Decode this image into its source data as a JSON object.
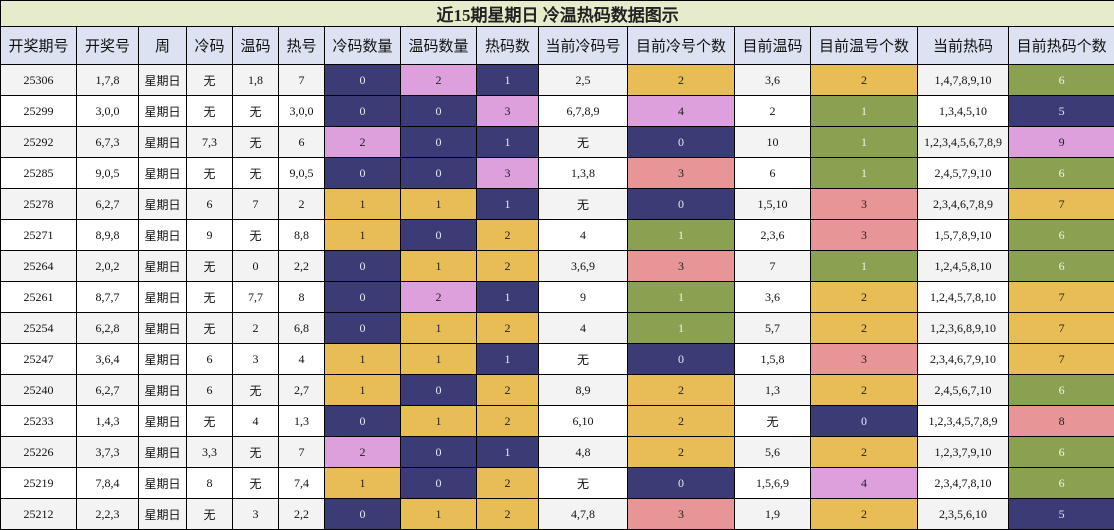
{
  "title": "近15期星期日 冷温热码数据图示",
  "headers": [
    "开奖期号",
    "开奖号",
    "周",
    "冷码",
    "温码",
    "热号",
    "冷码数量",
    "温码数量",
    "热码数",
    "当前冷码号",
    "目前冷号个数",
    "目前温码",
    "目前温号个数",
    "当前热码",
    "目前热码个数"
  ],
  "colors": {
    "navy": "#3b3b75",
    "pink": "#dda0dd",
    "gold": "#e8bd55",
    "green": "#8aa152",
    "rose": "#e89597"
  },
  "rows": [
    {
      "cells": [
        "25306",
        "1,7,8",
        "星期日",
        "无",
        "1,8",
        "7",
        "0",
        "2",
        "1",
        "2,5",
        "2",
        "3,6",
        "2",
        "1,4,7,8,9,10",
        "6"
      ],
      "colors": [
        "",
        "",
        "",
        "",
        "",
        "",
        "navy",
        "pink",
        "navy",
        "",
        "gold",
        "",
        "gold",
        "",
        "green"
      ]
    },
    {
      "cells": [
        "25299",
        "3,0,0",
        "星期日",
        "无",
        "无",
        "3,0,0",
        "0",
        "0",
        "3",
        "6,7,8,9",
        "4",
        "2",
        "1",
        "1,3,4,5,10",
        "5"
      ],
      "colors": [
        "",
        "",
        "",
        "",
        "",
        "",
        "navy",
        "navy",
        "pink",
        "",
        "pink",
        "",
        "green",
        "",
        "navy"
      ]
    },
    {
      "cells": [
        "25292",
        "6,7,3",
        "星期日",
        "7,3",
        "无",
        "6",
        "2",
        "0",
        "1",
        "无",
        "0",
        "10",
        "1",
        "1,2,3,4,5,6,7,8,9",
        "9"
      ],
      "colors": [
        "",
        "",
        "",
        "",
        "",
        "",
        "pink",
        "navy",
        "navy",
        "",
        "navy",
        "",
        "green",
        "",
        "pink"
      ]
    },
    {
      "cells": [
        "25285",
        "9,0,5",
        "星期日",
        "无",
        "无",
        "9,0,5",
        "0",
        "0",
        "3",
        "1,3,8",
        "3",
        "6",
        "1",
        "2,4,5,7,9,10",
        "6"
      ],
      "colors": [
        "",
        "",
        "",
        "",
        "",
        "",
        "navy",
        "navy",
        "pink",
        "",
        "rose",
        "",
        "green",
        "",
        "green"
      ]
    },
    {
      "cells": [
        "25278",
        "6,2,7",
        "星期日",
        "6",
        "7",
        "2",
        "1",
        "1",
        "1",
        "无",
        "0",
        "1,5,10",
        "3",
        "2,3,4,6,7,8,9",
        "7"
      ],
      "colors": [
        "",
        "",
        "",
        "",
        "",
        "",
        "gold",
        "gold",
        "navy",
        "",
        "navy",
        "",
        "rose",
        "",
        "gold"
      ]
    },
    {
      "cells": [
        "25271",
        "8,9,8",
        "星期日",
        "9",
        "无",
        "8,8",
        "1",
        "0",
        "2",
        "4",
        "1",
        "2,3,6",
        "3",
        "1,5,7,8,9,10",
        "6"
      ],
      "colors": [
        "",
        "",
        "",
        "",
        "",
        "",
        "gold",
        "navy",
        "gold",
        "",
        "green",
        "",
        "rose",
        "",
        "green"
      ]
    },
    {
      "cells": [
        "25264",
        "2,0,2",
        "星期日",
        "无",
        "0",
        "2,2",
        "0",
        "1",
        "2",
        "3,6,9",
        "3",
        "7",
        "1",
        "1,2,4,5,8,10",
        "6"
      ],
      "colors": [
        "",
        "",
        "",
        "",
        "",
        "",
        "navy",
        "gold",
        "gold",
        "",
        "rose",
        "",
        "green",
        "",
        "green"
      ]
    },
    {
      "cells": [
        "25261",
        "8,7,7",
        "星期日",
        "无",
        "7,7",
        "8",
        "0",
        "2",
        "1",
        "9",
        "1",
        "3,6",
        "2",
        "1,2,4,5,7,8,10",
        "7"
      ],
      "colors": [
        "",
        "",
        "",
        "",
        "",
        "",
        "navy",
        "pink",
        "navy",
        "",
        "green",
        "",
        "gold",
        "",
        "gold"
      ]
    },
    {
      "cells": [
        "25254",
        "6,2,8",
        "星期日",
        "无",
        "2",
        "6,8",
        "0",
        "1",
        "2",
        "4",
        "1",
        "5,7",
        "2",
        "1,2,3,6,8,9,10",
        "7"
      ],
      "colors": [
        "",
        "",
        "",
        "",
        "",
        "",
        "navy",
        "gold",
        "gold",
        "",
        "green",
        "",
        "gold",
        "",
        "gold"
      ]
    },
    {
      "cells": [
        "25247",
        "3,6,4",
        "星期日",
        "6",
        "3",
        "4",
        "1",
        "1",
        "1",
        "无",
        "0",
        "1,5,8",
        "3",
        "2,3,4,6,7,9,10",
        "7"
      ],
      "colors": [
        "",
        "",
        "",
        "",
        "",
        "",
        "gold",
        "gold",
        "navy",
        "",
        "navy",
        "",
        "rose",
        "",
        "gold"
      ]
    },
    {
      "cells": [
        "25240",
        "6,2,7",
        "星期日",
        "6",
        "无",
        "2,7",
        "1",
        "0",
        "2",
        "8,9",
        "2",
        "1,3",
        "2",
        "2,4,5,6,7,10",
        "6"
      ],
      "colors": [
        "",
        "",
        "",
        "",
        "",
        "",
        "gold",
        "navy",
        "gold",
        "",
        "gold",
        "",
        "gold",
        "",
        "green"
      ]
    },
    {
      "cells": [
        "25233",
        "1,4,3",
        "星期日",
        "无",
        "4",
        "1,3",
        "0",
        "1",
        "2",
        "6,10",
        "2",
        "无",
        "0",
        "1,2,3,4,5,7,8,9",
        "8"
      ],
      "colors": [
        "",
        "",
        "",
        "",
        "",
        "",
        "navy",
        "gold",
        "gold",
        "",
        "gold",
        "",
        "navy",
        "",
        "rose"
      ]
    },
    {
      "cells": [
        "25226",
        "3,7,3",
        "星期日",
        "3,3",
        "无",
        "7",
        "2",
        "0",
        "1",
        "4,8",
        "2",
        "5,6",
        "2",
        "1,2,3,7,9,10",
        "6"
      ],
      "colors": [
        "",
        "",
        "",
        "",
        "",
        "",
        "pink",
        "navy",
        "navy",
        "",
        "gold",
        "",
        "gold",
        "",
        "green"
      ]
    },
    {
      "cells": [
        "25219",
        "7,8,4",
        "星期日",
        "8",
        "无",
        "7,4",
        "1",
        "0",
        "2",
        "无",
        "0",
        "1,5,6,9",
        "4",
        "2,3,4,7,8,10",
        "6"
      ],
      "colors": [
        "",
        "",
        "",
        "",
        "",
        "",
        "gold",
        "navy",
        "gold",
        "",
        "navy",
        "",
        "pink",
        "",
        "green"
      ]
    },
    {
      "cells": [
        "25212",
        "2,2,3",
        "星期日",
        "无",
        "3",
        "2,2",
        "0",
        "1",
        "2",
        "4,7,8",
        "3",
        "1,9",
        "2",
        "2,3,5,6,10",
        "5"
      ],
      "colors": [
        "",
        "",
        "",
        "",
        "",
        "",
        "navy",
        "gold",
        "gold",
        "",
        "rose",
        "",
        "gold",
        "",
        "navy"
      ]
    }
  ]
}
